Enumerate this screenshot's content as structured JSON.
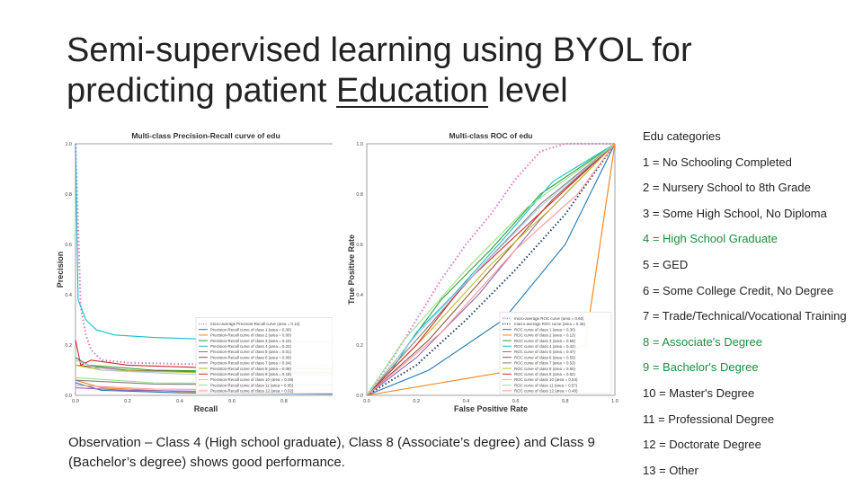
{
  "slide": {
    "title_pre": "Semi-supervised learning using BYOL for predicting patient ",
    "title_underlined": "Education",
    "title_post": " level",
    "observation": "Observation – Class 4 (High school graduate), Class 8 (Associate’s degree) and Class 9 (Bachelor’s degree) shows good performance.",
    "edu_header": "Edu categories",
    "edu_categories": [
      {
        "text": "1 = No Schooling Completed",
        "highlight": false
      },
      {
        "text": "2 = Nursery School to 8th Grade",
        "highlight": false
      },
      {
        "text": "3 = Some High School, No Diploma",
        "highlight": false
      },
      {
        "text": "4 = High School Graduate",
        "highlight": true
      },
      {
        "text": "5 = GED",
        "highlight": false
      },
      {
        "text": "6 = Some College Credit, No Degree",
        "highlight": false
      },
      {
        "text": "7 = Trade/Technical/Vocational Training",
        "highlight": false
      },
      {
        "text": "8 = Associate's Degree",
        "highlight": true
      },
      {
        "text": "9 = Bachelor's Degree",
        "highlight": true
      },
      {
        "text": "10 = Master's Degree",
        "highlight": false
      },
      {
        "text": "11 = Professional Degree",
        "highlight": false
      },
      {
        "text": "12 = Doctorate Degree",
        "highlight": false
      },
      {
        "text": "13 = Other",
        "highlight": false
      }
    ],
    "highlight_color": "#1a8f3c"
  },
  "chart_data": [
    {
      "type": "line",
      "title": "Multi-class Precision-Recall curve of edu",
      "xlabel": "Recall",
      "ylabel": "Precision",
      "xlim": [
        0,
        1
      ],
      "ylim": [
        0,
        1
      ],
      "xticks": [
        "0.0",
        "0.2",
        "0.4",
        "0.6",
        "0.8",
        "1.0"
      ],
      "yticks": [
        "0.0",
        "0.2",
        "0.4",
        "0.6",
        "0.8",
        "1.0"
      ],
      "legend_position": "bottom-right",
      "series": [
        {
          "name": "micro-average Precision-Recall curve (area = 0.13)",
          "color": "#e377c2",
          "dotted": true,
          "points": [
            [
              0,
              1
            ],
            [
              0.02,
              0.35
            ],
            [
              0.04,
              0.24
            ],
            [
              0.06,
              0.18
            ],
            [
              0.1,
              0.14
            ],
            [
              0.2,
              0.13
            ],
            [
              0.4,
              0.125
            ],
            [
              0.6,
              0.12
            ],
            [
              1,
              0.12
            ]
          ]
        },
        {
          "name": "Precision-Recall curve of class 1 (area = 0.00)",
          "color": "#1f77b4",
          "points": [
            [
              0,
              0.05
            ],
            [
              0.1,
              0.02
            ],
            [
              0.4,
              0.01
            ],
            [
              1,
              0.005
            ]
          ]
        },
        {
          "name": "Precision-Recall curve of class 2 (area = 0.00)",
          "color": "#ff7f0e",
          "points": [
            [
              0,
              0.06
            ],
            [
              0.1,
              0.03
            ],
            [
              0.4,
              0.015
            ],
            [
              1,
              0.01
            ]
          ]
        },
        {
          "name": "Precision-Recall curve of class 3 (area = 0.10)",
          "color": "#2ca02c",
          "points": [
            [
              0,
              0.15
            ],
            [
              0.05,
              0.12
            ],
            [
              0.3,
              0.1
            ],
            [
              1,
              0.09
            ]
          ]
        },
        {
          "name": "Precision-Recall curve of class 4 (area = 0.22)",
          "color": "#17becf",
          "points": [
            [
              0,
              1
            ],
            [
              0.01,
              0.38
            ],
            [
              0.04,
              0.3
            ],
            [
              0.08,
              0.26
            ],
            [
              0.15,
              0.24
            ],
            [
              0.3,
              0.23
            ],
            [
              0.6,
              0.22
            ],
            [
              1,
              0.21
            ]
          ]
        },
        {
          "name": "Precision-Recall curve of class 5 (area = 0.01)",
          "color": "#9467bd",
          "points": [
            [
              0,
              0.03
            ],
            [
              0.2,
              0.02
            ],
            [
              1,
              0.01
            ]
          ]
        },
        {
          "name": "Precision-Recall curve of class 6 (area = 0.09)",
          "color": "#8c564b",
          "points": [
            [
              0,
              0.12
            ],
            [
              0.2,
              0.1
            ],
            [
              0.6,
              0.09
            ],
            [
              1,
              0.085
            ]
          ]
        },
        {
          "name": "Precision-Recall curve of class 7 (area = 0.04)",
          "color": "#7f7f7f",
          "points": [
            [
              0,
              0.06
            ],
            [
              0.3,
              0.045
            ],
            [
              1,
              0.04
            ]
          ]
        },
        {
          "name": "Precision-Recall curve of class 8 (area = 0.09)",
          "color": "#bcbd22",
          "points": [
            [
              0,
              0.12
            ],
            [
              0.1,
              0.1
            ],
            [
              0.5,
              0.09
            ],
            [
              1,
              0.085
            ]
          ]
        },
        {
          "name": "Precision-Recall curve of class 9 (area = 0.18)",
          "color": "#d62728",
          "points": [
            [
              0,
              0.22
            ],
            [
              0.02,
              0.12
            ],
            [
              0.06,
              0.14
            ],
            [
              0.2,
              0.12
            ],
            [
              0.5,
              0.11
            ],
            [
              1,
              0.105
            ]
          ]
        },
        {
          "name": "Precision-Recall curve of class 10 (area = 0.08)",
          "color": "#aec7e8",
          "points": [
            [
              0,
              0.14
            ],
            [
              0.1,
              0.1
            ],
            [
              0.4,
              0.085
            ],
            [
              1,
              0.08
            ]
          ]
        },
        {
          "name": "Precision-Recall curve of class 11 (area = 0.05)",
          "color": "#98df8a",
          "points": [
            [
              0,
              0.07
            ],
            [
              0.3,
              0.05
            ],
            [
              1,
              0.045
            ]
          ]
        },
        {
          "name": "Precision-Recall curve of class 12 (area = 0.02)",
          "color": "#ff9896",
          "points": [
            [
              0,
              0.04
            ],
            [
              0.3,
              0.025
            ],
            [
              1,
              0.02
            ]
          ]
        }
      ]
    },
    {
      "type": "line",
      "title": "Multi-class ROC of edu",
      "xlabel": "False Positive Rate",
      "ylabel": "True Positive Rate",
      "xlim": [
        0,
        1
      ],
      "ylim": [
        0,
        1
      ],
      "xticks": [
        "0.0",
        "0.2",
        "0.4",
        "0.6",
        "0.8",
        "1.0"
      ],
      "yticks": [
        "0.0",
        "0.2",
        "0.4",
        "0.6",
        "0.8",
        "1.0"
      ],
      "legend_position": "bottom-right",
      "series": [
        {
          "name": "micro-average ROC curve (area = 0.60)",
          "color": "#e377c2",
          "dotted": true,
          "points": [
            [
              0,
              0
            ],
            [
              0.1,
              0.14
            ],
            [
              0.2,
              0.3
            ],
            [
              0.3,
              0.46
            ],
            [
              0.4,
              0.6
            ],
            [
              0.5,
              0.72
            ],
            [
              0.6,
              0.86
            ],
            [
              0.7,
              0.97
            ],
            [
              0.8,
              1
            ],
            [
              1,
              1
            ]
          ]
        },
        {
          "name": "macro-average ROC curve (area = 0.46)",
          "color": "#1f3c6e",
          "dotted": true,
          "points": [
            [
              0,
              0
            ],
            [
              0.2,
              0.12
            ],
            [
              0.4,
              0.3
            ],
            [
              0.6,
              0.5
            ],
            [
              0.8,
              0.72
            ],
            [
              1,
              1
            ]
          ]
        },
        {
          "name": "ROC curve of class 1 (area = 0.30)",
          "color": "#1f77b4",
          "points": [
            [
              0,
              0
            ],
            [
              0.25,
              0.1
            ],
            [
              0.55,
              0.3
            ],
            [
              0.8,
              0.6
            ],
            [
              1,
              1
            ]
          ]
        },
        {
          "name": "ROC curve of class 2 (area = 0.13)",
          "color": "#ff7f0e",
          "points": [
            [
              0,
              0
            ],
            [
              0.3,
              0.05
            ],
            [
              0.6,
              0.1
            ],
            [
              0.88,
              0.2
            ],
            [
              1,
              1
            ]
          ]
        },
        {
          "name": "ROC curve of class 3 (area = 0.59)",
          "color": "#2ca02c",
          "points": [
            [
              0,
              0
            ],
            [
              0.15,
              0.18
            ],
            [
              0.3,
              0.38
            ],
            [
              0.5,
              0.58
            ],
            [
              0.7,
              0.8
            ],
            [
              1,
              1
            ]
          ]
        },
        {
          "name": "ROC curve of class 4 (area = 0.42)",
          "color": "#17becf",
          "points": [
            [
              0,
              0
            ],
            [
              0.1,
              0.1
            ],
            [
              0.2,
              0.25
            ],
            [
              0.35,
              0.4
            ],
            [
              0.55,
              0.62
            ],
            [
              0.75,
              0.85
            ],
            [
              1,
              1
            ]
          ]
        },
        {
          "name": "ROC curve of class 5 (area = 0.47)",
          "color": "#9467bd",
          "points": [
            [
              0,
              0
            ],
            [
              0.2,
              0.15
            ],
            [
              0.45,
              0.4
            ],
            [
              0.7,
              0.7
            ],
            [
              1,
              1
            ]
          ]
        },
        {
          "name": "ROC curve of class 6 (area = 0.50)",
          "color": "#8c564b",
          "points": [
            [
              0,
              0
            ],
            [
              0.25,
              0.22
            ],
            [
              0.5,
              0.5
            ],
            [
              0.75,
              0.78
            ],
            [
              1,
              1
            ]
          ]
        },
        {
          "name": "ROC curve of class 7 (area = 0.53)",
          "color": "#7f7f7f",
          "points": [
            [
              0,
              0
            ],
            [
              0.2,
              0.22
            ],
            [
              0.45,
              0.5
            ],
            [
              0.7,
              0.76
            ],
            [
              1,
              1
            ]
          ]
        },
        {
          "name": "ROC curve of class 8 (area = 0.50)",
          "color": "#bcbd22",
          "points": [
            [
              0,
              0
            ],
            [
              0.25,
              0.25
            ],
            [
              0.5,
              0.52
            ],
            [
              0.75,
              0.75
            ],
            [
              1,
              1
            ]
          ]
        },
        {
          "name": "ROC curve of class 9 (area = 0.52)",
          "color": "#d62728",
          "points": [
            [
              0,
              0
            ],
            [
              0.2,
              0.2
            ],
            [
              0.4,
              0.45
            ],
            [
              0.65,
              0.68
            ],
            [
              1,
              1
            ]
          ]
        },
        {
          "name": "ROC curve of class 10 (area = 0.53)",
          "color": "#aec7e8",
          "points": [
            [
              0,
              0
            ],
            [
              0.2,
              0.24
            ],
            [
              0.45,
              0.5
            ],
            [
              0.7,
              0.75
            ],
            [
              1,
              1
            ]
          ]
        },
        {
          "name": "ROC curve of class 11 (area = 0.57)",
          "color": "#98df8a",
          "points": [
            [
              0,
              0
            ],
            [
              0.15,
              0.22
            ],
            [
              0.4,
              0.5
            ],
            [
              0.65,
              0.75
            ],
            [
              1,
              1
            ]
          ]
        },
        {
          "name": "ROC curve of class 12 (area = 0.48)",
          "color": "#ff9896",
          "points": [
            [
              0,
              0
            ],
            [
              0.3,
              0.25
            ],
            [
              0.6,
              0.58
            ],
            [
              0.85,
              0.8
            ],
            [
              1,
              1
            ]
          ]
        }
      ]
    }
  ]
}
